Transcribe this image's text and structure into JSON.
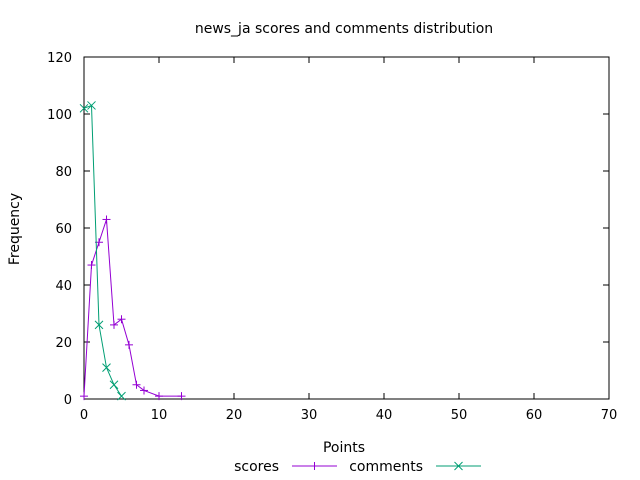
{
  "chart_data": {
    "type": "line",
    "title": "news_ja scores and comments distribution",
    "xlabel": "Points",
    "ylabel": "Frequency",
    "xlim": [
      0,
      70
    ],
    "ylim": [
      0,
      120
    ],
    "xticks": [
      0,
      10,
      20,
      30,
      40,
      50,
      60,
      70
    ],
    "yticks": [
      0,
      20,
      40,
      60,
      80,
      100,
      120
    ],
    "grid": false,
    "legend_position": "bottom-center",
    "series": [
      {
        "name": "scores",
        "color": "#9400d3",
        "marker": "plus",
        "x": [
          0,
          1,
          2,
          3,
          4,
          5,
          6,
          7,
          8,
          10,
          13
        ],
        "y": [
          1,
          47,
          55,
          63,
          26,
          28,
          19,
          5,
          3,
          1,
          1
        ]
      },
      {
        "name": "comments",
        "color": "#009e73",
        "marker": "cross",
        "x": [
          0,
          1,
          2,
          3,
          4,
          5
        ],
        "y": [
          102,
          103,
          26,
          11,
          5,
          1
        ]
      }
    ]
  }
}
